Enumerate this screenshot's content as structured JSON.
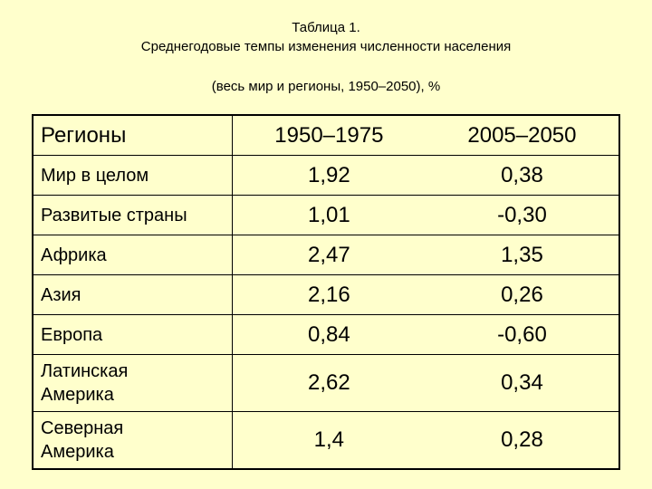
{
  "header": {
    "title": "Таблица 1.",
    "subtitle": "Среднегодовые темпы изменения численности населения",
    "note": "(весь мир и регионы, 1950–2050), %"
  },
  "table": {
    "columns": [
      "Регионы",
      "1950–1975",
      "2005–2050"
    ],
    "rows": [
      [
        "Мир в целом",
        "1,92",
        "0,38"
      ],
      [
        "Развитые страны",
        "1,01",
        "-0,30"
      ],
      [
        "Африка",
        "2,47",
        "1,35"
      ],
      [
        "Азия",
        "2,16",
        "0,26"
      ],
      [
        "Европа",
        "0,84",
        "-0,60"
      ],
      [
        "Латинская Америка",
        "2,62",
        "0,34"
      ],
      [
        "Северная Америка",
        "1,4",
        "0,28"
      ]
    ]
  }
}
